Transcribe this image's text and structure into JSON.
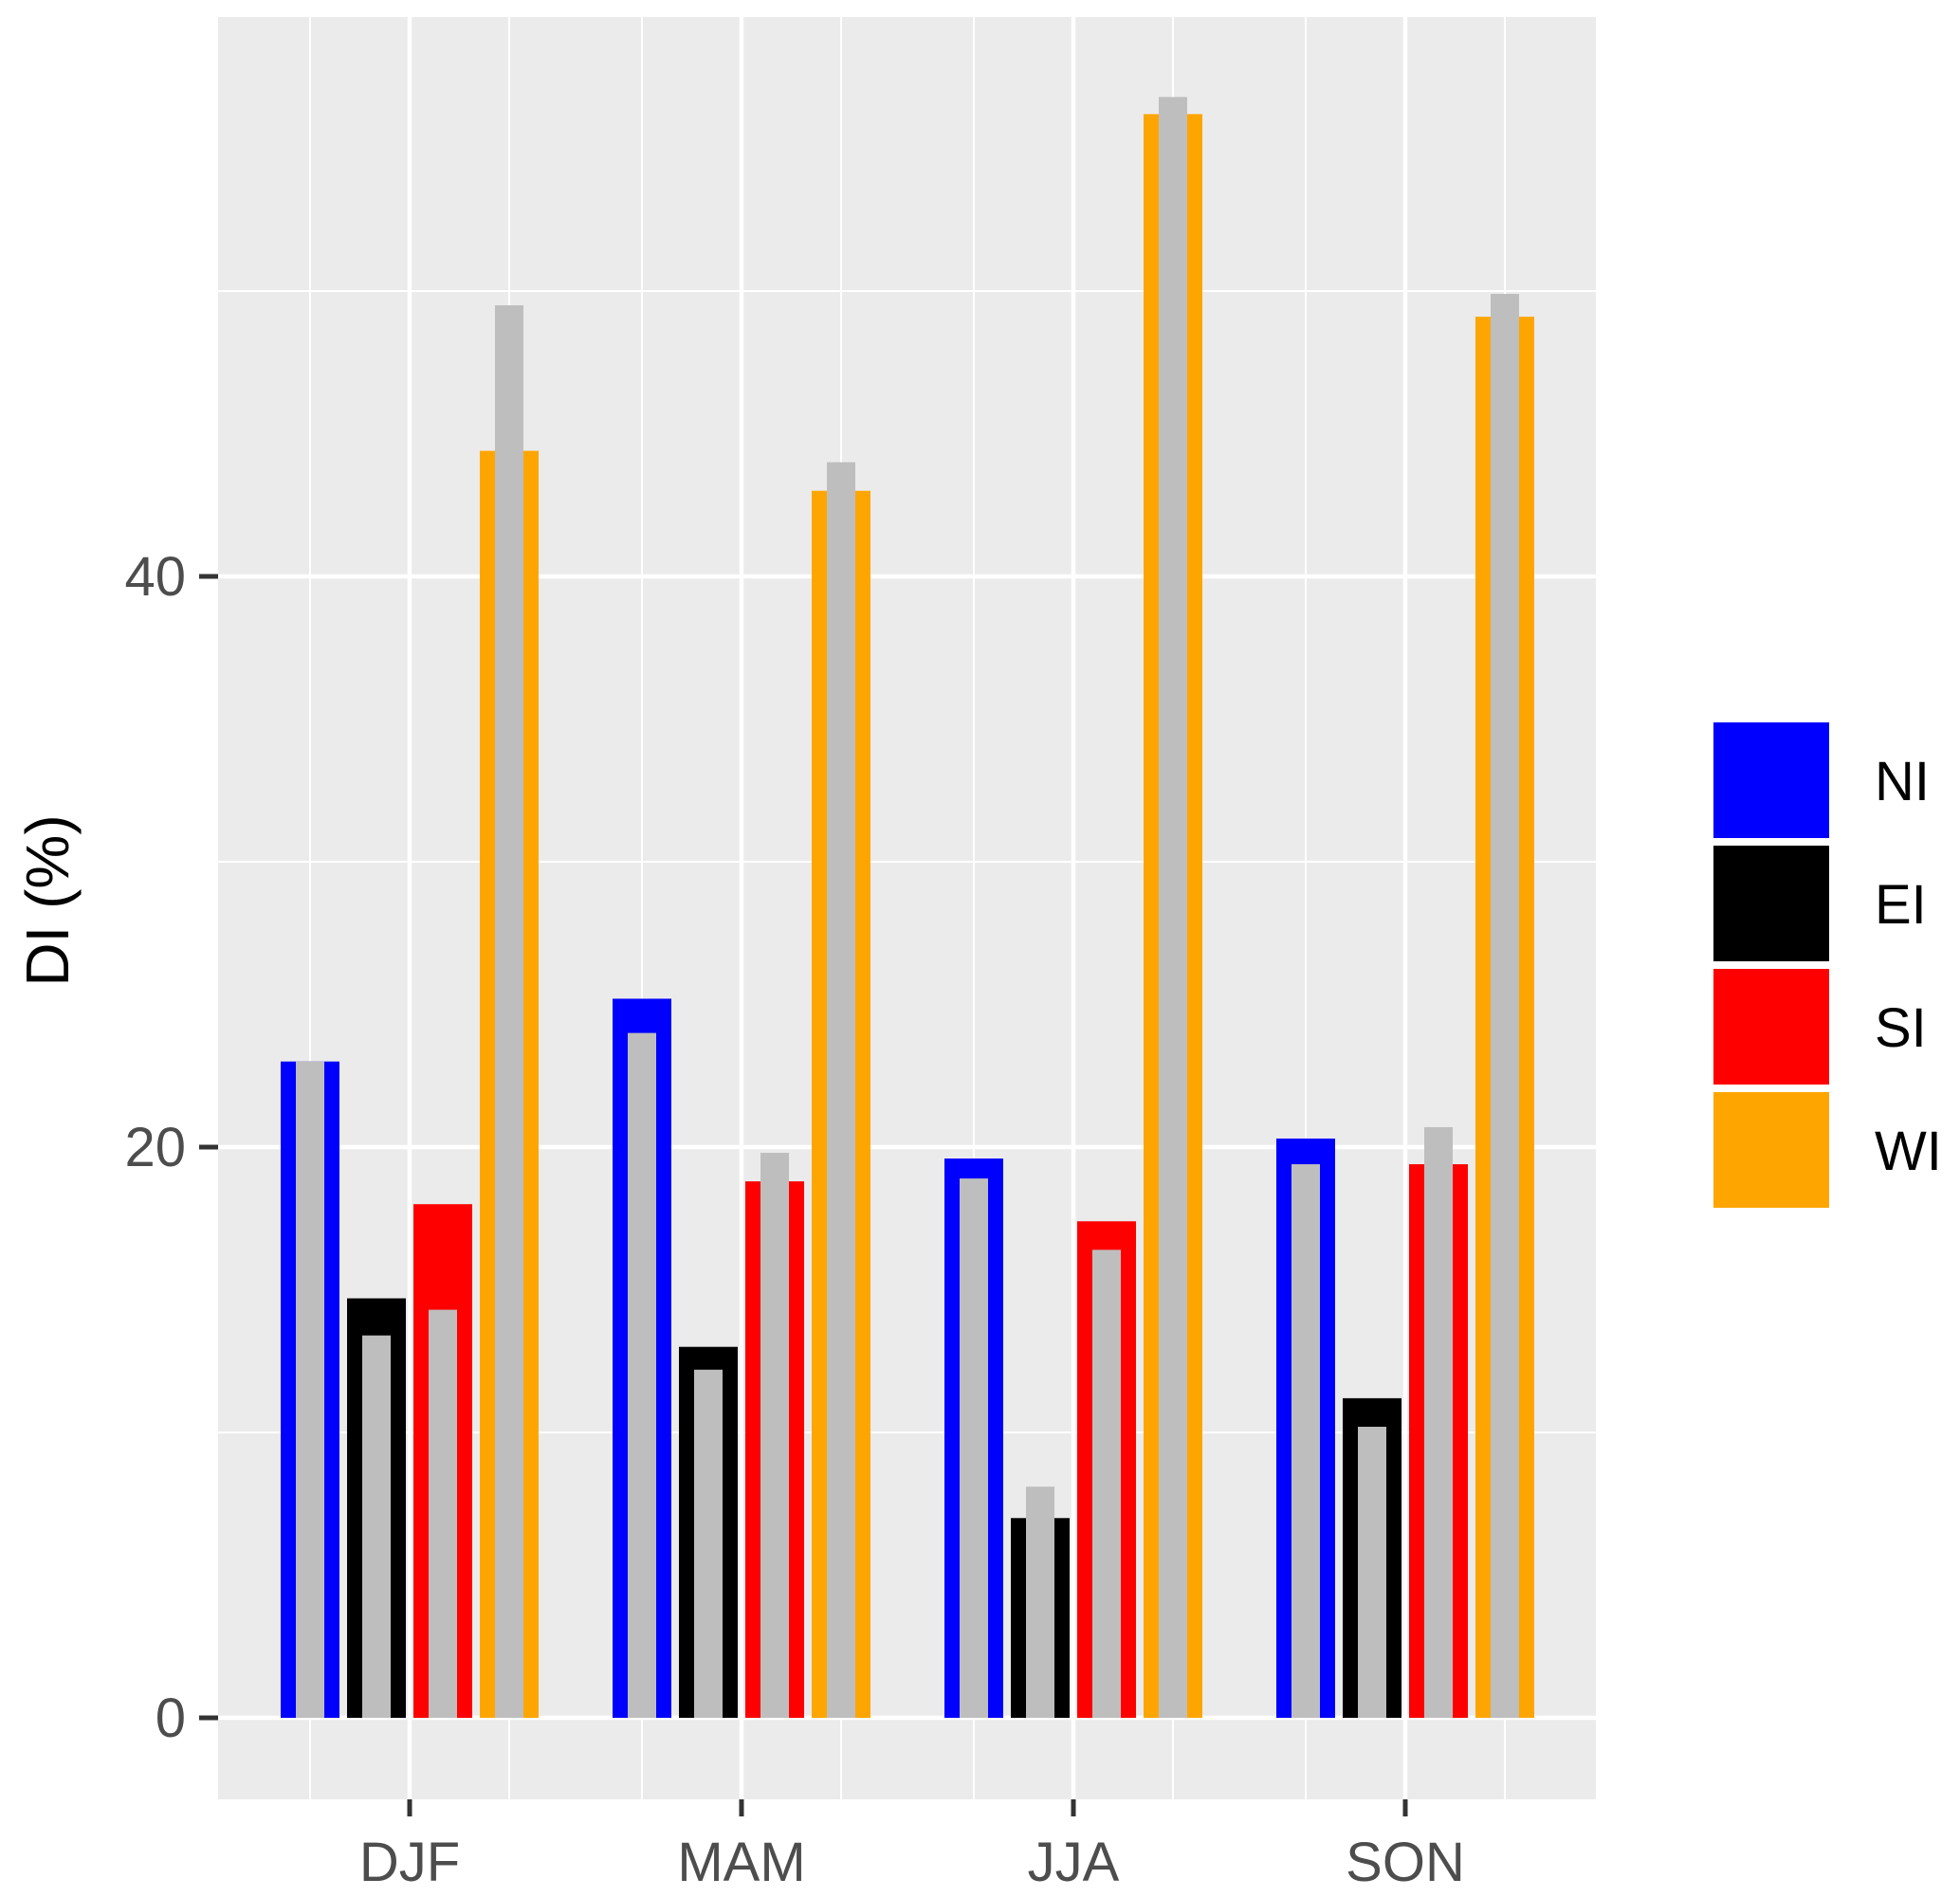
{
  "chart_data": {
    "type": "bar",
    "title": "",
    "xlabel": "",
    "ylabel": "DI (%)",
    "categories": [
      "DJF",
      "MAM",
      "JJA",
      "SON"
    ],
    "yticks": [
      "0",
      "20",
      "40"
    ],
    "ylim": [
      -2.4,
      60.5
    ],
    "grid": true,
    "legend_position": "right",
    "series": [
      {
        "name": "NI",
        "color": "#0000ff",
        "values": [
          23.0,
          25.2,
          19.6,
          20.3
        ]
      },
      {
        "name": "EI",
        "color": "#000000",
        "values": [
          14.7,
          13.0,
          7.0,
          11.2
        ]
      },
      {
        "name": "SI",
        "color": "#ff0000",
        "values": [
          18.0,
          18.8,
          17.4,
          19.4
        ]
      },
      {
        "name": "WI",
        "color": "#ffa500",
        "values": [
          44.4,
          43.0,
          56.2,
          49.1
        ]
      }
    ],
    "overlay": {
      "color": "#bebebe",
      "values": [
        [
          23.0,
          24.0,
          18.9,
          19.4
        ],
        [
          13.4,
          12.2,
          8.1,
          10.2
        ],
        [
          14.3,
          19.8,
          16.4,
          20.7
        ],
        [
          49.5,
          44.0,
          56.8,
          49.9
        ]
      ]
    }
  }
}
